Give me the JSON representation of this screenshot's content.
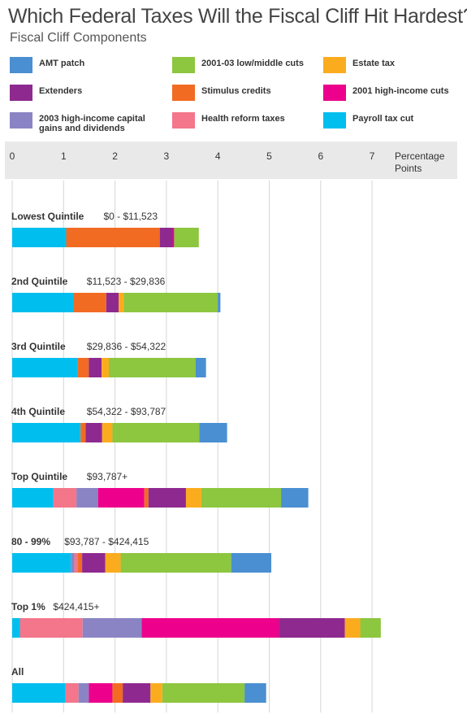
{
  "title": "Which Federal Taxes Will the Fiscal Cliff Hit Hardest?",
  "subtitle": "Fiscal Cliff Components",
  "legend": [
    {
      "name": "AMT patch",
      "color": "#4a8fd1"
    },
    {
      "name": "Extenders",
      "color": "#8e2a8f"
    },
    {
      "name": "2003 high-income capital gains and dividends",
      "color": "#8b84c4"
    },
    {
      "name": "2001-03 low/middle cuts",
      "color": "#8dc63f"
    },
    {
      "name": "Stimulus credits",
      "color": "#f26b22"
    },
    {
      "name": "Health reform taxes",
      "color": "#f3768a"
    },
    {
      "name": "Estate tax",
      "color": "#fbac1e"
    },
    {
      "name": "2001 high-income cuts",
      "color": "#ec008c"
    },
    {
      "name": "Payroll tax cut",
      "color": "#00bfef"
    }
  ],
  "chart_data": {
    "type": "bar",
    "orientation": "horizontal",
    "stacked": true,
    "title": "Which Federal Taxes Will the Fiscal Cliff Hit Hardest?",
    "subtitle": "Fiscal Cliff Components",
    "xlabel": "Percentage Points",
    "xlim": [
      0,
      7
    ],
    "xticks": [
      0,
      1,
      2,
      3,
      4,
      5,
      6,
      7
    ],
    "grid": true,
    "legend_position": "top",
    "categories": [
      {
        "name": "Lowest Quintile",
        "range": "$0 - $11,523"
      },
      {
        "name": "2nd Quintile",
        "range": "$11,523 - $29,836"
      },
      {
        "name": "3rd Quintile",
        "range": "$29,836 - $54,322"
      },
      {
        "name": "4th Quintile",
        "range": "$54,322 - $93,787"
      },
      {
        "name": "Top Quintile",
        "range": "$93,787+"
      },
      {
        "name": "80 - 99%",
        "range": "$93,787 -  $424,415"
      },
      {
        "name": "Top 1%",
        "range": "$424,415+"
      },
      {
        "name": "All",
        "range": ""
      }
    ],
    "segments": [
      [
        {
          "series": "Payroll tax cut",
          "value": 1.05
        },
        {
          "series": "Stimulus credits",
          "value": 1.82
        },
        {
          "series": "Extenders",
          "value": 0.25
        },
        {
          "series": "2001 high-income cuts",
          "value": 0.03
        },
        {
          "series": "2001-03 low/middle cuts",
          "value": 0.48
        }
      ],
      [
        {
          "series": "Payroll tax cut",
          "value": 1.2
        },
        {
          "series": "Stimulus credits",
          "value": 0.63
        },
        {
          "series": "Extenders",
          "value": 0.24
        },
        {
          "series": "Estate tax",
          "value": 0.1
        },
        {
          "series": "2001-03 low/middle cuts",
          "value": 1.83
        },
        {
          "series": "AMT patch",
          "value": 0.05
        }
      ],
      [
        {
          "series": "Payroll tax cut",
          "value": 1.27
        },
        {
          "series": "Stimulus credits",
          "value": 0.22
        },
        {
          "series": "Extenders",
          "value": 0.25
        },
        {
          "series": "Estate tax",
          "value": 0.14
        },
        {
          "series": "2001-03 low/middle cuts",
          "value": 1.69
        },
        {
          "series": "AMT patch",
          "value": 0.2
        }
      ],
      [
        {
          "series": "Payroll tax cut",
          "value": 1.33
        },
        {
          "series": "Stimulus credits",
          "value": 0.1
        },
        {
          "series": "Extenders",
          "value": 0.32
        },
        {
          "series": "Estate tax",
          "value": 0.2
        },
        {
          "series": "2001-03 low/middle cuts",
          "value": 1.69
        },
        {
          "series": "AMT patch",
          "value": 0.54
        }
      ],
      [
        {
          "series": "Payroll tax cut",
          "value": 0.8
        },
        {
          "series": "Health reform taxes",
          "value": 0.45
        },
        {
          "series": "2003 high-income capital gains and dividends",
          "value": 0.42
        },
        {
          "series": "2001 high-income cuts",
          "value": 0.9
        },
        {
          "series": "Stimulus credits",
          "value": 0.08
        },
        {
          "series": "Extenders",
          "value": 0.73
        },
        {
          "series": "Estate tax",
          "value": 0.3
        },
        {
          "series": "2001-03 low/middle cuts",
          "value": 1.55
        },
        {
          "series": "AMT patch",
          "value": 0.53
        }
      ],
      [
        {
          "series": "Payroll tax cut",
          "value": 1.14
        },
        {
          "series": "2003 high-income capital gains and dividends",
          "value": 0.07
        },
        {
          "series": "Health reform taxes",
          "value": 0.07
        },
        {
          "series": "Stimulus credits",
          "value": 0.08
        },
        {
          "series": "Extenders",
          "value": 0.45
        },
        {
          "series": "Estate tax",
          "value": 0.3
        },
        {
          "series": "2001-03 low/middle cuts",
          "value": 2.15
        },
        {
          "series": "AMT patch",
          "value": 0.78
        }
      ],
      [
        {
          "series": "Payroll tax cut",
          "value": 0.15
        },
        {
          "series": "Health reform taxes",
          "value": 1.22
        },
        {
          "series": "2003 high-income capital gains and dividends",
          "value": 1.15
        },
        {
          "series": "2001 high-income cuts",
          "value": 2.67
        },
        {
          "series": "Extenders",
          "value": 1.28
        },
        {
          "series": "Estate tax",
          "value": 0.3
        },
        {
          "series": "2001-03 low/middle cuts",
          "value": 0.4
        }
      ],
      [
        {
          "series": "Payroll tax cut",
          "value": 1.04
        },
        {
          "series": "Health reform taxes",
          "value": 0.25
        },
        {
          "series": "2003 high-income capital gains and dividends",
          "value": 0.2
        },
        {
          "series": "2001 high-income cuts",
          "value": 0.46
        },
        {
          "series": "Stimulus credits",
          "value": 0.2
        },
        {
          "series": "Extenders",
          "value": 0.54
        },
        {
          "series": "Estate tax",
          "value": 0.23
        },
        {
          "series": "2001-03 low/middle cuts",
          "value": 1.6
        },
        {
          "series": "AMT patch",
          "value": 0.42
        }
      ]
    ]
  }
}
